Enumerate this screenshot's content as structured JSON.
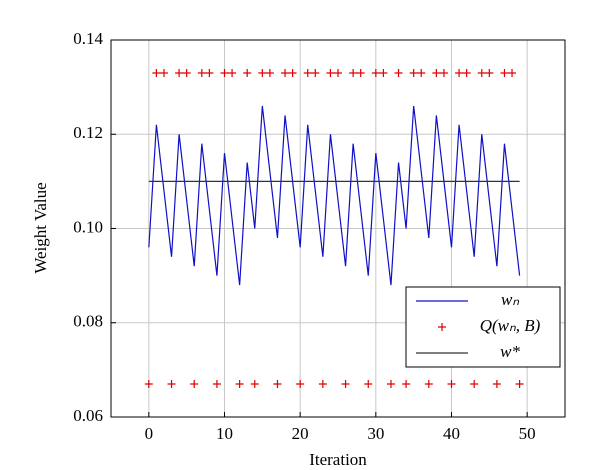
{
  "chart_data": {
    "type": "line",
    "xlabel": "Iteration",
    "ylabel": "Weight Value",
    "x": [
      0,
      1,
      2,
      3,
      4,
      5,
      6,
      7,
      8,
      9,
      10,
      11,
      12,
      13,
      14,
      15,
      16,
      17,
      18,
      19,
      20,
      21,
      22,
      23,
      24,
      25,
      26,
      27,
      28,
      29,
      30,
      31,
      32,
      33,
      34,
      35,
      36,
      37,
      38,
      39,
      40,
      41,
      42,
      43,
      44,
      45,
      46,
      47,
      48,
      49
    ],
    "series": [
      {
        "name": "wₙ",
        "color": "#1010c8",
        "mode": "line",
        "values": [
          0.096,
          0.122,
          0.108,
          0.094,
          0.12,
          0.106,
          0.092,
          0.118,
          0.104,
          0.09,
          0.116,
          0.102,
          0.088,
          0.114,
          0.1,
          0.126,
          0.112,
          0.098,
          0.124,
          0.11,
          0.096,
          0.122,
          0.108,
          0.094,
          0.12,
          0.106,
          0.092,
          0.118,
          0.104,
          0.09,
          0.116,
          0.102,
          0.088,
          0.114,
          0.1,
          0.126,
          0.112,
          0.098,
          0.124,
          0.11,
          0.096,
          0.122,
          0.108,
          0.094,
          0.12,
          0.106,
          0.092,
          0.118,
          0.104,
          0.09
        ]
      },
      {
        "name": "Q(wₙ, B)",
        "color": "#e00000",
        "mode": "markers",
        "values": [
          0.067,
          0.133,
          0.133,
          0.067,
          0.133,
          0.133,
          0.067,
          0.133,
          0.133,
          0.067,
          0.133,
          0.133,
          0.067,
          0.133,
          0.067,
          0.133,
          0.133,
          0.067,
          0.133,
          0.133,
          0.067,
          0.133,
          0.133,
          0.067,
          0.133,
          0.133,
          0.067,
          0.133,
          0.133,
          0.067,
          0.133,
          0.133,
          0.067,
          0.133,
          0.067,
          0.133,
          0.133,
          0.067,
          0.133,
          0.133,
          0.067,
          0.133,
          0.133,
          0.067,
          0.133,
          0.133,
          0.067,
          0.133,
          0.133,
          0.067
        ]
      },
      {
        "name": "w*",
        "color": "#333333",
        "mode": "line",
        "x": [
          0,
          49
        ],
        "values": [
          0.11,
          0.11
        ]
      }
    ],
    "xlim": [
      -5,
      55
    ],
    "xticks": [
      0,
      10,
      20,
      30,
      40,
      50
    ],
    "ylim": [
      0.06,
      0.14
    ],
    "yticks": [
      0.06,
      0.08,
      {
        "value": 0.1,
        "label": "0.10"
      },
      0.12,
      0.14
    ],
    "grid": true,
    "legend": "lower right"
  }
}
